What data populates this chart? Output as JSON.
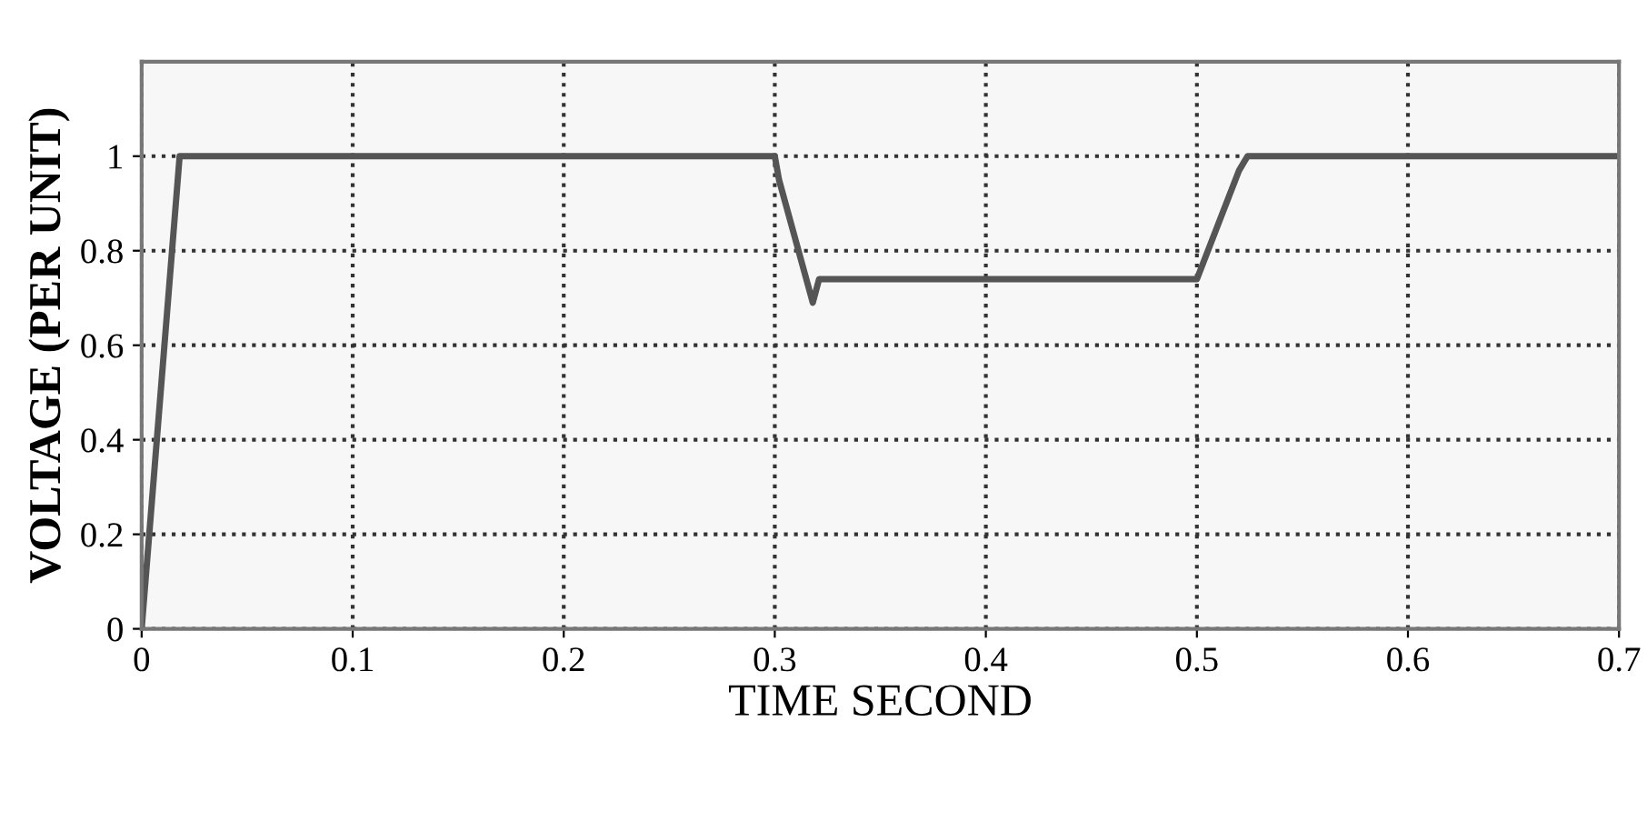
{
  "chart_data": {
    "type": "line",
    "xlabel": "TIME SECOND",
    "ylabel": "VOLTAGE (PER UNIT)",
    "series": [
      {
        "color": "#555555",
        "x": [
          0,
          0.018,
          0.3,
          0.302,
          0.318,
          0.321,
          0.5,
          0.52,
          0.524,
          0.7
        ],
        "values": [
          0,
          1,
          1,
          0.95,
          0.69,
          0.74,
          0.74,
          0.97,
          1,
          1
        ]
      }
    ],
    "xlim": [
      0,
      0.7
    ],
    "ylim": [
      0,
      1.2
    ],
    "xticks": [
      0,
      0.1,
      0.2,
      0.3,
      0.4,
      0.5,
      0.6,
      0.7
    ],
    "yticks": [
      0,
      0.2,
      0.4,
      0.6,
      0.8,
      1
    ],
    "grid": true,
    "marker": "none",
    "line_style": "solid"
  }
}
